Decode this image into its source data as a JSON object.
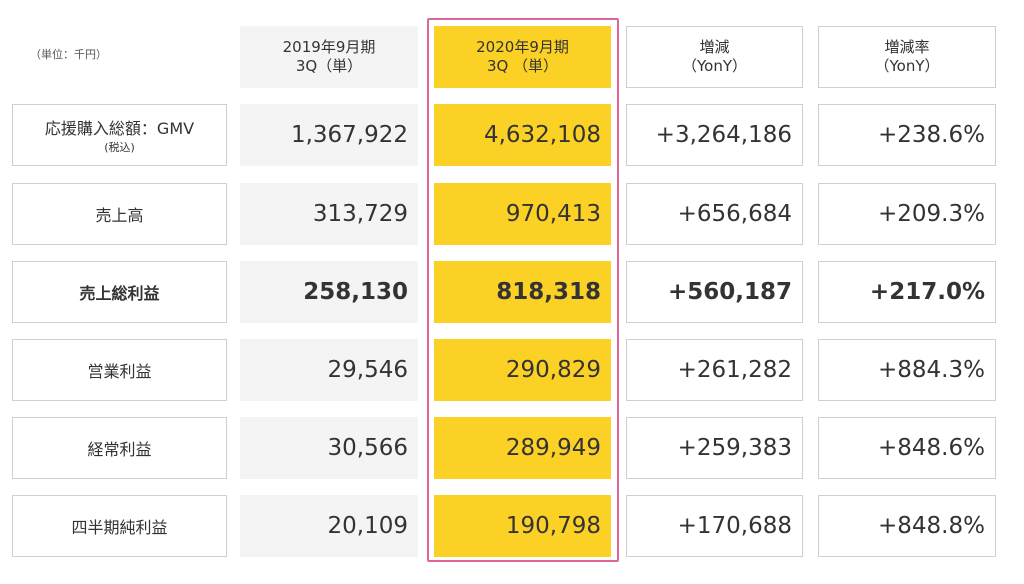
{
  "unit": "（単位：千円）",
  "headers": {
    "prev": [
      "2019年9月期",
      "3Q（単）"
    ],
    "curr": [
      "2020年9月期",
      "3Q （単）"
    ],
    "diff": [
      "増減",
      "（YonY）"
    ],
    "rate": [
      "増減率",
      "（YonY）"
    ]
  },
  "colors": {
    "highlight": "#fcd126",
    "highlight_border": "#e0669a",
    "prev_bg": "#f4f4f4"
  },
  "rows": [
    {
      "label": "応援購入総額：GMV",
      "sub": "(税込)",
      "prev": "1,367,922",
      "curr": "4,632,108",
      "diff": "+3,264,186",
      "rate": "+238.6%"
    },
    {
      "label": "売上高",
      "prev": "313,729",
      "curr": "970,413",
      "diff": "+656,684",
      "rate": "+209.3%"
    },
    {
      "label": "売上総利益",
      "prev": "258,130",
      "curr": "818,318",
      "diff": "+560,187",
      "rate": "+217.0%"
    },
    {
      "label": "営業利益",
      "prev": "29,546",
      "curr": "290,829",
      "diff": "+261,282",
      "rate": "+884.3%"
    },
    {
      "label": "経常利益",
      "prev": "30,566",
      "curr": "289,949",
      "diff": "+259,383",
      "rate": "+848.6%"
    },
    {
      "label": "四半期純利益",
      "prev": "20,109",
      "curr": "190,798",
      "diff": "+170,688",
      "rate": "+848.8%"
    }
  ]
}
